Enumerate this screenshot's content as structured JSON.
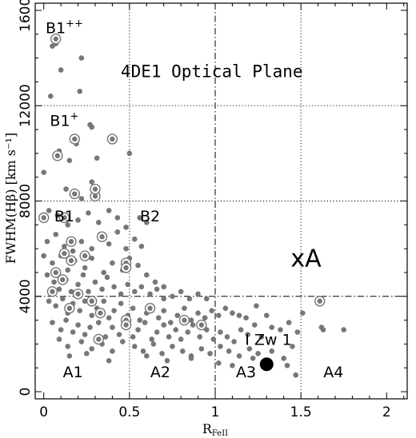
{
  "chart_data": {
    "type": "scatter",
    "title": "4DE1 Optical Plane",
    "xlabel": "R",
    "xlabel_sub": "FeII",
    "ylabel": "FWHM(Hβ) [km s⁻¹]",
    "xlim": [
      -0.05,
      2.12
    ],
    "ylim": [
      -300,
      16300
    ],
    "x_ticks": [
      {
        "value": 0,
        "label": "0"
      },
      {
        "value": 0.5,
        "label": "0.5"
      },
      {
        "value": 1,
        "label": "1"
      },
      {
        "value": 1.5,
        "label": "1.5"
      },
      {
        "value": 2,
        "label": "2"
      }
    ],
    "y_ticks": [
      {
        "value": 0,
        "label": "0"
      },
      {
        "value": 4000,
        "label": "4000"
      },
      {
        "value": 8000,
        "label": "8000"
      },
      {
        "value": 12000,
        "label": "12000"
      },
      {
        "value": 16000,
        "label": "16000"
      }
    ],
    "dividers": {
      "vertical_dotted": [
        0.5,
        1.5
      ],
      "vertical_dashdot": [
        1.0
      ],
      "horizontal_dotted": [
        8000,
        12000
      ],
      "horizontal_dashdot": [
        4000
      ]
    },
    "region_labels": [
      {
        "text": "B1",
        "sup": "++",
        "x": 0.12,
        "y": 15050
      },
      {
        "text": "B1",
        "sup": "+",
        "x": 0.12,
        "y": 11150
      },
      {
        "text": "B1",
        "sup": "",
        "x": 0.12,
        "y": 7150
      },
      {
        "text": "B2",
        "sup": "",
        "x": 0.62,
        "y": 7150
      },
      {
        "text": "A1",
        "sup": "",
        "x": 0.17,
        "y": 600
      },
      {
        "text": "A2",
        "sup": "",
        "x": 0.68,
        "y": 600
      },
      {
        "text": "A3",
        "sup": "",
        "x": 1.18,
        "y": 600
      },
      {
        "text": "A4",
        "sup": "",
        "x": 1.69,
        "y": 600
      }
    ],
    "big_label": {
      "text": "xA",
      "x": 1.53,
      "y": 5250
    },
    "annotation": {
      "text": "I Zw 1",
      "x": 1.31,
      "y": 1970
    },
    "highlight_point": {
      "name": "I Zw 1",
      "x": 1.3,
      "y": 1150
    },
    "series": [
      {
        "marker": "filled-dot",
        "points": [
          [
            0.04,
            12400
          ],
          [
            0.05,
            14500
          ],
          [
            0.07,
            14600
          ],
          [
            0.1,
            13500
          ],
          [
            0.21,
            12600
          ],
          [
            0.22,
            14000
          ],
          [
            0.27,
            11200
          ],
          [
            0.09,
            10100
          ],
          [
            0.15,
            9700
          ],
          [
            0.19,
            10400
          ],
          [
            0.28,
            11100
          ],
          [
            0.28,
            8800
          ],
          [
            0.31,
            9800
          ],
          [
            0.13,
            8500
          ],
          [
            0.18,
            8300
          ],
          [
            0.22,
            8100
          ],
          [
            0.5,
            10000
          ],
          [
            0.0,
            9200
          ],
          [
            0.03,
            7600
          ],
          [
            0.08,
            7400
          ],
          [
            0.14,
            7000
          ],
          [
            0.2,
            7200
          ],
          [
            0.26,
            7500
          ],
          [
            0.32,
            7100
          ],
          [
            0.38,
            7600
          ],
          [
            0.43,
            7300
          ],
          [
            0.48,
            6900
          ],
          [
            0.56,
            7300
          ],
          [
            0.6,
            7100
          ],
          [
            0.02,
            6300
          ],
          [
            0.07,
            6600
          ],
          [
            0.12,
            6100
          ],
          [
            0.17,
            5900
          ],
          [
            0.22,
            6300
          ],
          [
            0.28,
            6000
          ],
          [
            0.33,
            6600
          ],
          [
            0.38,
            6200
          ],
          [
            0.43,
            6700
          ],
          [
            0.48,
            6000
          ],
          [
            0.53,
            6400
          ],
          [
            0.57,
            6100
          ],
          [
            0.0,
            5700
          ],
          [
            0.05,
            5400
          ],
          [
            0.1,
            5700
          ],
          [
            0.14,
            5100
          ],
          [
            0.18,
            5500
          ],
          [
            0.24,
            5200
          ],
          [
            0.28,
            5600
          ],
          [
            0.35,
            5000
          ],
          [
            0.4,
            5400
          ],
          [
            0.46,
            5100
          ],
          [
            0.5,
            5600
          ],
          [
            0.55,
            5300
          ],
          [
            0.6,
            4900
          ],
          [
            0.65,
            4600
          ],
          [
            0.7,
            4400
          ],
          [
            0.02,
            4900
          ],
          [
            0.06,
            4600
          ],
          [
            0.09,
            4300
          ],
          [
            0.13,
            4700
          ],
          [
            0.16,
            4200
          ],
          [
            0.2,
            4500
          ],
          [
            0.23,
            4900
          ],
          [
            0.26,
            4200
          ],
          [
            0.3,
            4600
          ],
          [
            0.34,
            4300
          ],
          [
            0.37,
            4800
          ],
          [
            0.41,
            4400
          ],
          [
            0.45,
            4100
          ],
          [
            0.49,
            4500
          ],
          [
            0.53,
            4200
          ],
          [
            0.57,
            4400
          ],
          [
            0.62,
            4100
          ],
          [
            0.66,
            4300
          ],
          [
            0.7,
            3900
          ],
          [
            0.75,
            4000
          ],
          [
            0.8,
            4200
          ],
          [
            0.85,
            3900
          ],
          [
            0.9,
            4100
          ],
          [
            0.95,
            3900
          ],
          [
            0.03,
            3800
          ],
          [
            0.07,
            3600
          ],
          [
            0.11,
            3900
          ],
          [
            0.14,
            3300
          ],
          [
            0.17,
            3700
          ],
          [
            0.21,
            3400
          ],
          [
            0.24,
            3800
          ],
          [
            0.28,
            3200
          ],
          [
            0.31,
            3500
          ],
          [
            0.35,
            3800
          ],
          [
            0.38,
            3100
          ],
          [
            0.41,
            3400
          ],
          [
            0.45,
            3700
          ],
          [
            0.49,
            3200
          ],
          [
            0.52,
            3500
          ],
          [
            0.56,
            3000
          ],
          [
            0.6,
            3300
          ],
          [
            0.63,
            3600
          ],
          [
            0.67,
            3100
          ],
          [
            0.7,
            3400
          ],
          [
            0.74,
            2900
          ],
          [
            0.78,
            3200
          ],
          [
            0.82,
            3500
          ],
          [
            0.86,
            3000
          ],
          [
            0.9,
            3300
          ],
          [
            0.94,
            3100
          ],
          [
            0.98,
            3400
          ],
          [
            1.02,
            3200
          ],
          [
            1.06,
            3500
          ],
          [
            1.1,
            3300
          ],
          [
            1.14,
            3200
          ],
          [
            1.18,
            3100
          ],
          [
            1.24,
            3600
          ],
          [
            1.3,
            3200
          ],
          [
            0.05,
            2900
          ],
          [
            0.1,
            2600
          ],
          [
            0.13,
            3000
          ],
          [
            0.17,
            2500
          ],
          [
            0.2,
            2800
          ],
          [
            0.24,
            2400
          ],
          [
            0.27,
            2700
          ],
          [
            0.32,
            2900
          ],
          [
            0.36,
            2300
          ],
          [
            0.4,
            2700
          ],
          [
            0.44,
            2400
          ],
          [
            0.48,
            2800
          ],
          [
            0.52,
            2300
          ],
          [
            0.55,
            2600
          ],
          [
            0.59,
            2900
          ],
          [
            0.63,
            2200
          ],
          [
            0.66,
            2500
          ],
          [
            0.7,
            2800
          ],
          [
            0.73,
            2300
          ],
          [
            0.77,
            2600
          ],
          [
            0.8,
            2200
          ],
          [
            0.84,
            2500
          ],
          [
            0.87,
            2800
          ],
          [
            0.91,
            2300
          ],
          [
            0.95,
            2600
          ],
          [
            0.99,
            2200
          ],
          [
            1.03,
            2500
          ],
          [
            1.07,
            2300
          ],
          [
            1.11,
            2100
          ],
          [
            1.15,
            2600
          ],
          [
            1.19,
            2400
          ],
          [
            1.23,
            2800
          ],
          [
            1.27,
            2300
          ],
          [
            1.33,
            2700
          ],
          [
            1.38,
            2600
          ],
          [
            1.43,
            2900
          ],
          [
            1.48,
            2500
          ],
          [
            0.09,
            2200
          ],
          [
            0.14,
            1900
          ],
          [
            0.22,
            2100
          ],
          [
            0.28,
            1800
          ],
          [
            0.34,
            2000
          ],
          [
            0.4,
            1700
          ],
          [
            0.46,
            2100
          ],
          [
            0.53,
            1900
          ],
          [
            0.58,
            1700
          ],
          [
            0.64,
            2000
          ],
          [
            0.69,
            1600
          ],
          [
            0.75,
            1900
          ],
          [
            0.81,
            1700
          ],
          [
            0.86,
            1500
          ],
          [
            0.92,
            1800
          ],
          [
            0.97,
            1600
          ],
          [
            1.03,
            1900
          ],
          [
            1.08,
            1700
          ],
          [
            1.14,
            1500
          ],
          [
            1.2,
            1800
          ],
          [
            1.25,
            1600
          ],
          [
            1.33,
            1700
          ],
          [
            1.4,
            1400
          ],
          [
            1.45,
            1900
          ],
          [
            0.15,
            1500
          ],
          [
            0.25,
            1600
          ],
          [
            0.38,
            1300
          ],
          [
            0.6,
            1500
          ],
          [
            0.72,
            1300
          ],
          [
            0.86,
            1400
          ],
          [
            1.02,
            1200
          ],
          [
            1.1,
            1100
          ],
          [
            1.22,
            1400
          ],
          [
            1.42,
            1100
          ],
          [
            1.47,
            700
          ],
          [
            1.51,
            3300
          ],
          [
            1.62,
            2700
          ],
          [
            1.63,
            2600
          ],
          [
            1.75,
            2600
          ],
          [
            1.61,
            3800
          ]
        ]
      },
      {
        "marker": "circled-dot",
        "points": [
          [
            0.07,
            14800
          ],
          [
            0.18,
            10600
          ],
          [
            0.4,
            10600
          ],
          [
            0.08,
            9900
          ],
          [
            0.18,
            8300
          ],
          [
            0.3,
            8200
          ],
          [
            0.3,
            8500
          ],
          [
            0.0,
            7300
          ],
          [
            0.12,
            7300
          ],
          [
            0.16,
            6300
          ],
          [
            0.34,
            6500
          ],
          [
            0.12,
            5800
          ],
          [
            0.16,
            5500
          ],
          [
            0.24,
            5700
          ],
          [
            0.48,
            5400
          ],
          [
            0.48,
            5200
          ],
          [
            0.07,
            5000
          ],
          [
            0.11,
            4700
          ],
          [
            0.05,
            4200
          ],
          [
            0.2,
            4100
          ],
          [
            0.28,
            3800
          ],
          [
            0.15,
            3500
          ],
          [
            0.33,
            3300
          ],
          [
            0.48,
            3000
          ],
          [
            0.48,
            2800
          ],
          [
            0.62,
            3500
          ],
          [
            0.82,
            3000
          ],
          [
            0.92,
            2800
          ],
          [
            0.32,
            2200
          ],
          [
            1.61,
            3800
          ]
        ]
      }
    ]
  }
}
